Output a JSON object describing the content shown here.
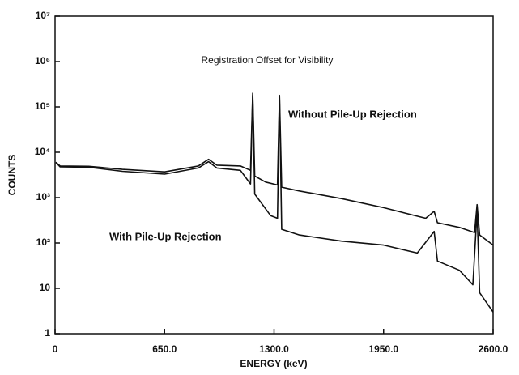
{
  "chart_data": {
    "type": "line",
    "annotation": "Registration Offset for Visibility",
    "xlabel": "ENERGY (keV)",
    "ylabel": "COUNTS",
    "log_y": true,
    "xlim": [
      0,
      2600
    ],
    "ylim": [
      1,
      10000000
    ],
    "xticks": [
      0,
      {
        "value": 650,
        "label": "650.0"
      },
      {
        "value": 1300,
        "label": "1300.0"
      },
      {
        "value": 1950,
        "label": "1950.0"
      },
      {
        "value": 2600,
        "label": "2600.0"
      }
    ],
    "yticks": [
      1,
      10,
      {
        "value": 100,
        "label": "10²"
      },
      {
        "value": 1000,
        "label": "10³"
      },
      {
        "value": 10000,
        "label": "10⁴"
      },
      {
        "value": 100000,
        "label": "10⁵"
      },
      {
        "value": 1000000,
        "label": "10⁶"
      },
      {
        "value": 10000000,
        "label": "10⁷"
      }
    ],
    "series": [
      {
        "name": "Without Pile-Up Rejection",
        "color": "#111111",
        "x": [
          5,
          30,
          200,
          400,
          650,
          850,
          911,
          960,
          1100,
          1160,
          1173,
          1185,
          1250,
          1320,
          1332,
          1345,
          1450,
          1700,
          1950,
          2200,
          2250,
          2270,
          2400,
          2490,
          2505,
          2520,
          2600
        ],
        "values": [
          6000,
          5000,
          4900,
          4200,
          3700,
          5000,
          7000,
          5200,
          5000,
          4000,
          200000,
          3000,
          2200,
          1900,
          180000,
          1700,
          1400,
          950,
          600,
          350,
          500,
          280,
          220,
          170,
          700,
          150,
          90
        ]
      },
      {
        "name": "With Pile-Up Rejection",
        "color": "#111111",
        "x": [
          5,
          30,
          200,
          400,
          650,
          850,
          911,
          960,
          1100,
          1160,
          1173,
          1185,
          1280,
          1320,
          1332,
          1345,
          1450,
          1700,
          1950,
          2150,
          2250,
          2270,
          2400,
          2480,
          2505,
          2520,
          2600
        ],
        "values": [
          6000,
          4800,
          4700,
          3800,
          3300,
          4500,
          6200,
          4500,
          4000,
          2000,
          180000,
          1200,
          400,
          350,
          170000,
          200,
          150,
          110,
          90,
          60,
          180,
          40,
          25,
          12,
          500,
          8,
          3
        ]
      }
    ]
  }
}
